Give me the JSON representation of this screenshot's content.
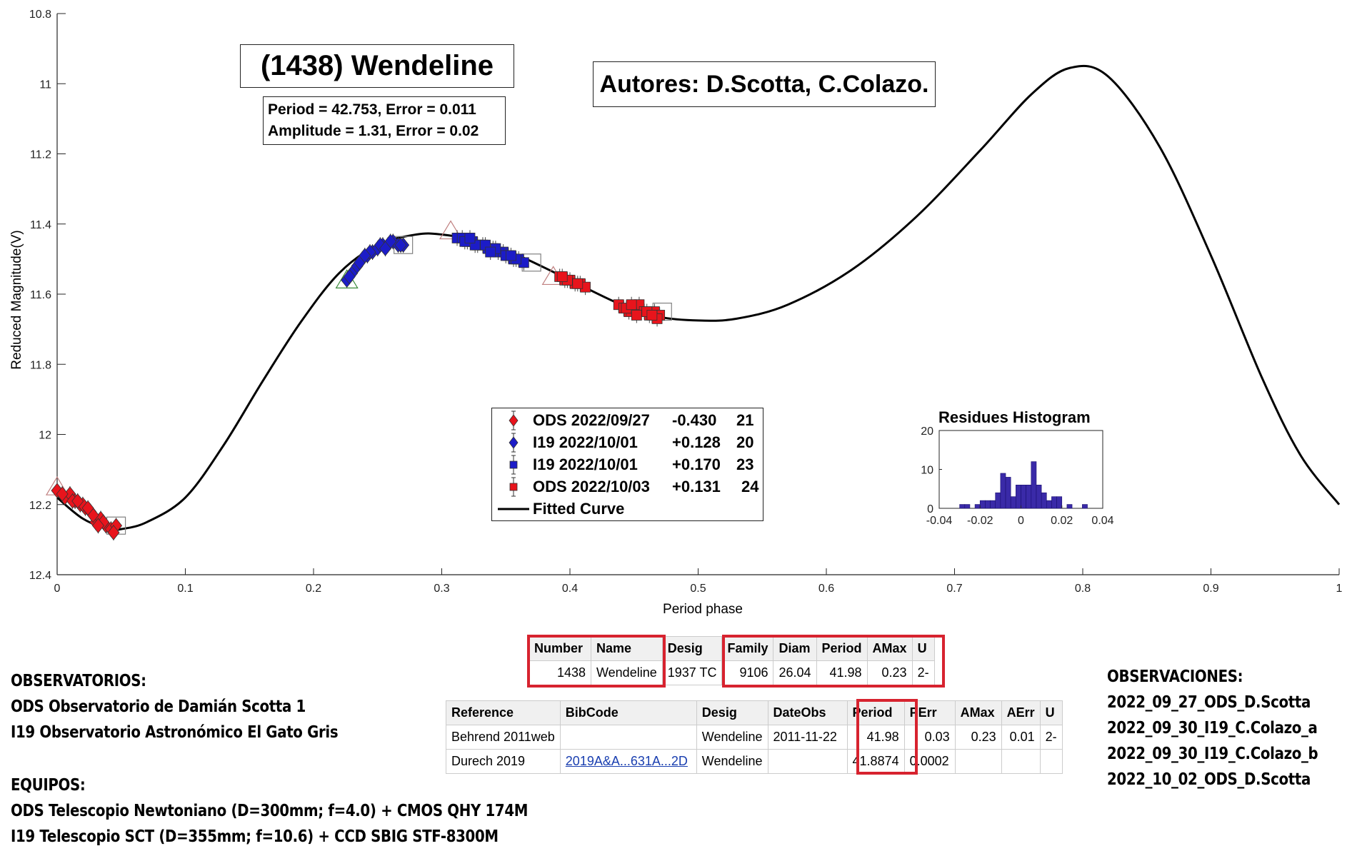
{
  "chart_data": {
    "type": "scatter",
    "title": "(1438) Wendeline",
    "authors": "Autores: D.Scotta, C.Colazo.",
    "period_line": "Period =  42.753, Error = 0.011",
    "amplitude_line": "Amplitude = 1.31, Error = 0.02",
    "xlabel": "Period phase",
    "ylabel": "Reduced Magnitude(V)",
    "xlim": [
      0,
      1
    ],
    "ylim": [
      10.8,
      12.4
    ],
    "y_reversed": true,
    "grid": false,
    "x_ticks": [
      "0",
      "0.1",
      "0.2",
      "0.3",
      "0.4",
      "0.5",
      "0.6",
      "0.7",
      "0.8",
      "0.9",
      "1"
    ],
    "y_ticks": [
      "10.8",
      "11",
      "11.2",
      "11.4",
      "11.6",
      "11.8",
      "12",
      "12.2",
      "12.4"
    ],
    "fitted_curve": {
      "name": "Fitted Curve",
      "x": [
        0,
        0.02,
        0.04,
        0.05,
        0.07,
        0.1,
        0.13,
        0.16,
        0.19,
        0.22,
        0.25,
        0.28,
        0.3,
        0.33,
        0.36,
        0.4,
        0.44,
        0.47,
        0.5,
        0.53,
        0.57,
        0.62,
        0.67,
        0.72,
        0.76,
        0.79,
        0.82,
        0.86,
        0.9,
        0.94,
        0.97,
        1.0
      ],
      "y": [
        12.18,
        12.24,
        12.27,
        12.27,
        12.25,
        12.18,
        12.03,
        11.85,
        11.68,
        11.54,
        11.46,
        11.43,
        11.43,
        11.45,
        11.49,
        11.56,
        11.63,
        11.665,
        11.675,
        11.67,
        11.63,
        11.53,
        11.38,
        11.19,
        11.03,
        10.955,
        10.98,
        11.18,
        11.49,
        11.84,
        12.06,
        12.2
      ]
    },
    "series": [
      {
        "name": "ODS 2022/09/27",
        "offset": "-0.430",
        "count": "21",
        "marker": "diamond",
        "color": "#e8141c",
        "x": [
          0.0,
          0.006,
          0.01,
          0.014,
          0.018,
          0.022,
          0.026,
          0.03,
          0.034,
          0.038,
          0.042,
          0.046,
          0.004,
          0.012,
          0.02,
          0.028,
          0.036,
          0.044,
          0.016,
          0.024,
          0.032
        ],
        "y": [
          12.16,
          12.18,
          12.17,
          12.19,
          12.2,
          12.21,
          12.22,
          12.25,
          12.24,
          12.26,
          12.27,
          12.26,
          12.17,
          12.19,
          12.2,
          12.23,
          12.25,
          12.28,
          12.19,
          12.21,
          12.26
        ]
      },
      {
        "name": "I19 2022/10/01",
        "offset": "+0.128",
        "count": "20",
        "marker": "diamond",
        "color": "#1c1cc8",
        "x": [
          0.226,
          0.23,
          0.234,
          0.238,
          0.242,
          0.246,
          0.25,
          0.254,
          0.258,
          0.262,
          0.266,
          0.27,
          0.228,
          0.236,
          0.244,
          0.252,
          0.26,
          0.268,
          0.24,
          0.256
        ],
        "y": [
          11.56,
          11.54,
          11.52,
          11.5,
          11.49,
          11.48,
          11.47,
          11.46,
          11.46,
          11.45,
          11.46,
          11.46,
          11.55,
          11.51,
          11.48,
          11.46,
          11.45,
          11.46,
          11.49,
          11.47
        ]
      },
      {
        "name": "I19 2022/10/01",
        "offset": "+0.170",
        "count": "23",
        "marker": "square",
        "color": "#1c1cc8",
        "x": [
          0.312,
          0.316,
          0.32,
          0.324,
          0.328,
          0.332,
          0.336,
          0.34,
          0.344,
          0.348,
          0.352,
          0.356,
          0.36,
          0.364,
          0.318,
          0.326,
          0.334,
          0.342,
          0.35,
          0.358,
          0.322,
          0.338,
          0.354
        ],
        "y": [
          11.44,
          11.44,
          11.45,
          11.45,
          11.46,
          11.46,
          11.47,
          11.47,
          11.48,
          11.48,
          11.49,
          11.5,
          11.5,
          11.51,
          11.45,
          11.46,
          11.46,
          11.47,
          11.49,
          11.5,
          11.44,
          11.48,
          11.49
        ]
      },
      {
        "name": "ODS 2022/10/03",
        "offset": "+0.131",
        "count": "24",
        "marker": "square",
        "color": "#e8141c",
        "x": [
          0.392,
          0.396,
          0.4,
          0.404,
          0.408,
          0.412,
          0.438,
          0.442,
          0.446,
          0.45,
          0.454,
          0.458,
          0.462,
          0.466,
          0.47,
          0.398,
          0.406,
          0.444,
          0.452,
          0.46,
          0.468,
          0.394,
          0.448,
          0.464
        ],
        "y": [
          11.55,
          11.56,
          11.56,
          11.57,
          11.57,
          11.58,
          11.63,
          11.64,
          11.65,
          11.64,
          11.63,
          11.65,
          11.66,
          11.65,
          11.66,
          11.56,
          11.57,
          11.64,
          11.66,
          11.65,
          11.67,
          11.55,
          11.63,
          11.66
        ]
      }
    ],
    "session_boundaries": [
      {
        "x": 0.0,
        "y": 12.15,
        "shape": "triangle",
        "color": "#c08080"
      },
      {
        "x": 0.046,
        "y": 12.26,
        "shape": "square",
        "color": "#808080"
      },
      {
        "x": 0.226,
        "y": 11.56,
        "shape": "triangle",
        "color": "#3a8a3a"
      },
      {
        "x": 0.27,
        "y": 11.46,
        "shape": "square",
        "color": "#808080"
      },
      {
        "x": 0.307,
        "y": 11.42,
        "shape": "triangle",
        "color": "#c08080"
      },
      {
        "x": 0.37,
        "y": 11.51,
        "shape": "square",
        "color": "#808080"
      },
      {
        "x": 0.387,
        "y": 11.55,
        "shape": "triangle",
        "color": "#c08080"
      },
      {
        "x": 0.472,
        "y": 11.65,
        "shape": "square",
        "color": "#808080"
      }
    ],
    "legend_curve_label": "Fitted Curve",
    "histogram": {
      "title": "Residues Histogram",
      "x_ticks": [
        "-0.04",
        "-0.02",
        "0",
        "0.02",
        "0.04"
      ],
      "y_ticks": [
        "0",
        "10",
        "20"
      ],
      "xlim": [
        -0.04,
        0.04
      ],
      "ylim": [
        0,
        20
      ],
      "bin_width": 0.0025,
      "bin_starts": [
        -0.03,
        -0.0275,
        -0.025,
        -0.0225,
        -0.02,
        -0.0175,
        -0.015,
        -0.0125,
        -0.01,
        -0.0075,
        -0.005,
        -0.0025,
        0,
        0.0025,
        0.005,
        0.0075,
        0.01,
        0.0125,
        0.015,
        0.0175,
        0.02,
        0.0225,
        0.025,
        0.0275,
        0.03
      ],
      "counts": [
        1,
        1,
        0,
        1,
        2,
        2,
        2,
        4,
        9,
        8,
        3,
        6,
        6,
        6,
        12,
        6,
        4,
        2,
        3,
        3,
        0,
        1,
        0,
        0,
        1
      ],
      "color": "#3a2aa8"
    }
  },
  "observatorios": {
    "heading": "OBSERVATORIOS:",
    "lines": [
      "ODS Observatorio de Damián Scotta 1",
      "I19 Observatorio Astronómico El Gato Gris"
    ]
  },
  "equipos": {
    "heading": "EQUIPOS:",
    "lines": [
      "ODS Telescopio Newtoniano (D=300mm; f=4.0) + CMOS QHY 174M",
      "I19 Telescopio SCT (D=355mm; f=10.6) + CCD SBIG STF-8300M"
    ]
  },
  "observaciones": {
    "heading": "OBSERVACIONES:",
    "lines": [
      "2022_09_27_ODS_D.Scotta",
      "2022_09_30_I19_C.Colazo_a",
      "2022_09_30_I19_C.Colazo_b",
      "2022_10_02_ODS_D.Scotta"
    ]
  },
  "summary_table": {
    "headers": [
      "Number",
      "Name",
      "Desig",
      "Family",
      "Diam",
      "Period",
      "AMax",
      "U"
    ],
    "row": [
      "1438",
      "Wendeline",
      "1937 TC",
      "9106",
      "26.04",
      "41.98",
      "0.23",
      "2-"
    ]
  },
  "ref_table": {
    "headers": [
      "Reference",
      "BibCode",
      "Desig",
      "DateObs",
      "Period",
      "PErr",
      "AMax",
      "AErr",
      "U"
    ],
    "rows": [
      [
        "Behrend 2011web",
        "",
        "Wendeline",
        "2011-11-22",
        "41.98",
        "0.03",
        "0.23",
        "0.01",
        "2-"
      ],
      [
        "Durech 2019",
        "2019A&A...631A...2D",
        "Wendeline",
        "",
        "41.8874",
        "0.0002",
        "",
        "",
        ""
      ]
    ]
  }
}
